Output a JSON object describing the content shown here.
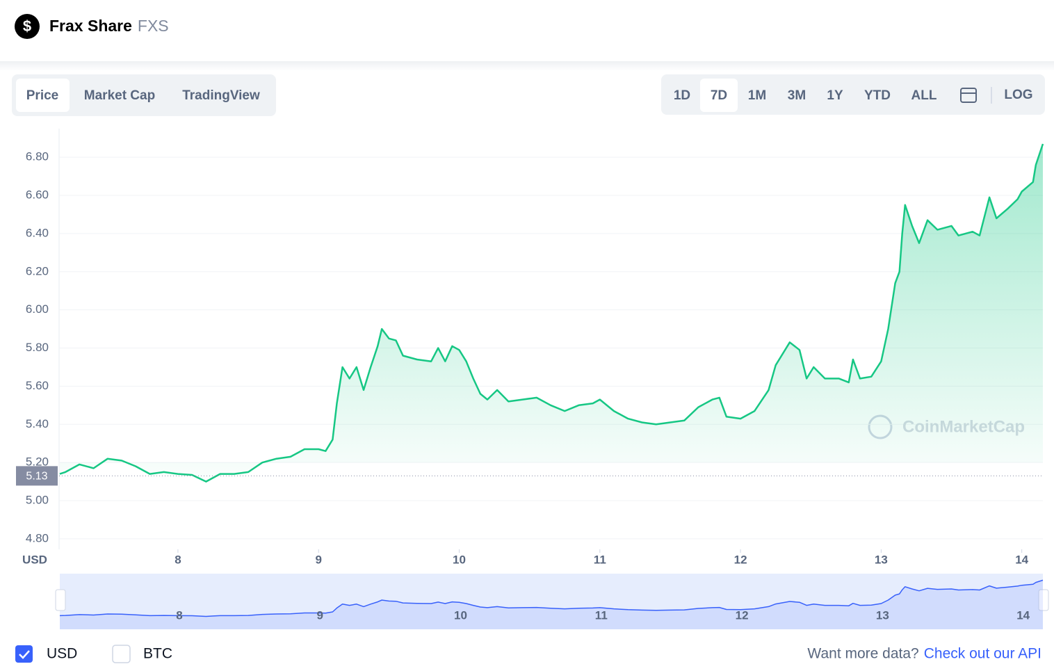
{
  "header": {
    "name": "Frax Share",
    "symbol": "FXS"
  },
  "tabs": [
    "Price",
    "Market Cap",
    "TradingView"
  ],
  "ranges": [
    "1D",
    "7D",
    "1M",
    "3M",
    "1Y",
    "YTD",
    "ALL"
  ],
  "log": "LOG",
  "chart_data": {
    "type": "line",
    "y_unit": "USD",
    "watermark": "CoinMarketCap",
    "current_price": {
      "value": 5.13,
      "label": "5.13"
    },
    "x": [
      7.16,
      7.2,
      7.3,
      7.4,
      7.5,
      7.6,
      7.7,
      7.8,
      7.9,
      8.0,
      8.1,
      8.2,
      8.25,
      8.3,
      8.4,
      8.5,
      8.6,
      8.7,
      8.8,
      8.9,
      9.0,
      9.05,
      9.1,
      9.13,
      9.17,
      9.22,
      9.27,
      9.32,
      9.37,
      9.42,
      9.45,
      9.5,
      9.55,
      9.6,
      9.7,
      9.8,
      9.85,
      9.9,
      9.95,
      10.0,
      10.05,
      10.1,
      10.15,
      10.2,
      10.27,
      10.35,
      10.45,
      10.55,
      10.65,
      10.75,
      10.85,
      10.95,
      11.0,
      11.1,
      11.2,
      11.3,
      11.4,
      11.5,
      11.6,
      11.7,
      11.8,
      11.85,
      11.9,
      12.0,
      12.1,
      12.2,
      12.25,
      12.35,
      12.42,
      12.47,
      12.52,
      12.6,
      12.7,
      12.77,
      12.8,
      12.85,
      12.93,
      13.0,
      13.05,
      13.1,
      13.13,
      13.15,
      13.17,
      13.22,
      13.27,
      13.33,
      13.4,
      13.5,
      13.55,
      13.65,
      13.7,
      13.77,
      13.82,
      13.9,
      13.97,
      14.0,
      14.08,
      14.1,
      14.15
    ],
    "series": [
      {
        "name": "Price",
        "color": "#16c784",
        "values": [
          5.14,
          5.15,
          5.19,
          5.17,
          5.22,
          5.21,
          5.18,
          5.14,
          5.15,
          5.14,
          5.135,
          5.1,
          5.12,
          5.14,
          5.14,
          5.15,
          5.2,
          5.22,
          5.23,
          5.27,
          5.27,
          5.26,
          5.32,
          5.51,
          5.7,
          5.64,
          5.7,
          5.58,
          5.7,
          5.81,
          5.9,
          5.85,
          5.84,
          5.76,
          5.74,
          5.73,
          5.8,
          5.73,
          5.81,
          5.79,
          5.73,
          5.64,
          5.56,
          5.53,
          5.58,
          5.52,
          5.53,
          5.54,
          5.5,
          5.47,
          5.5,
          5.51,
          5.53,
          5.47,
          5.43,
          5.41,
          5.4,
          5.41,
          5.42,
          5.49,
          5.53,
          5.54,
          5.44,
          5.43,
          5.47,
          5.58,
          5.71,
          5.83,
          5.79,
          5.64,
          5.7,
          5.64,
          5.64,
          5.62,
          5.74,
          5.64,
          5.65,
          5.73,
          5.9,
          6.14,
          6.2,
          6.4,
          6.55,
          6.44,
          6.35,
          6.47,
          6.42,
          6.44,
          6.39,
          6.41,
          6.39,
          6.59,
          6.48,
          6.53,
          6.58,
          6.62,
          6.67,
          6.76,
          6.87
        ]
      }
    ],
    "xlim": [
      7.155,
      14.15
    ],
    "xticks": [
      8,
      9,
      10,
      11,
      12,
      13,
      14
    ],
    "ylim": [
      4.745,
      6.95
    ],
    "yticks": [
      {
        "value": 4.8,
        "label": "4.80"
      },
      {
        "value": 5.0,
        "label": "5.00"
      },
      {
        "value": 5.2,
        "label": "5.20"
      },
      {
        "value": 5.4,
        "label": "5.40"
      },
      {
        "value": 5.6,
        "label": "5.60"
      },
      {
        "value": 5.8,
        "label": "5.80"
      },
      {
        "value": 6.0,
        "label": "6.00"
      },
      {
        "value": 6.2,
        "label": "6.20"
      },
      {
        "value": 6.4,
        "label": "6.40"
      },
      {
        "value": 6.6,
        "label": "6.60"
      },
      {
        "value": 6.8,
        "label": "6.80"
      }
    ],
    "grid": true
  },
  "currencies": [
    "USD",
    "BTC"
  ],
  "footer": {
    "text": "Want more data?",
    "link": "Check out our API"
  }
}
